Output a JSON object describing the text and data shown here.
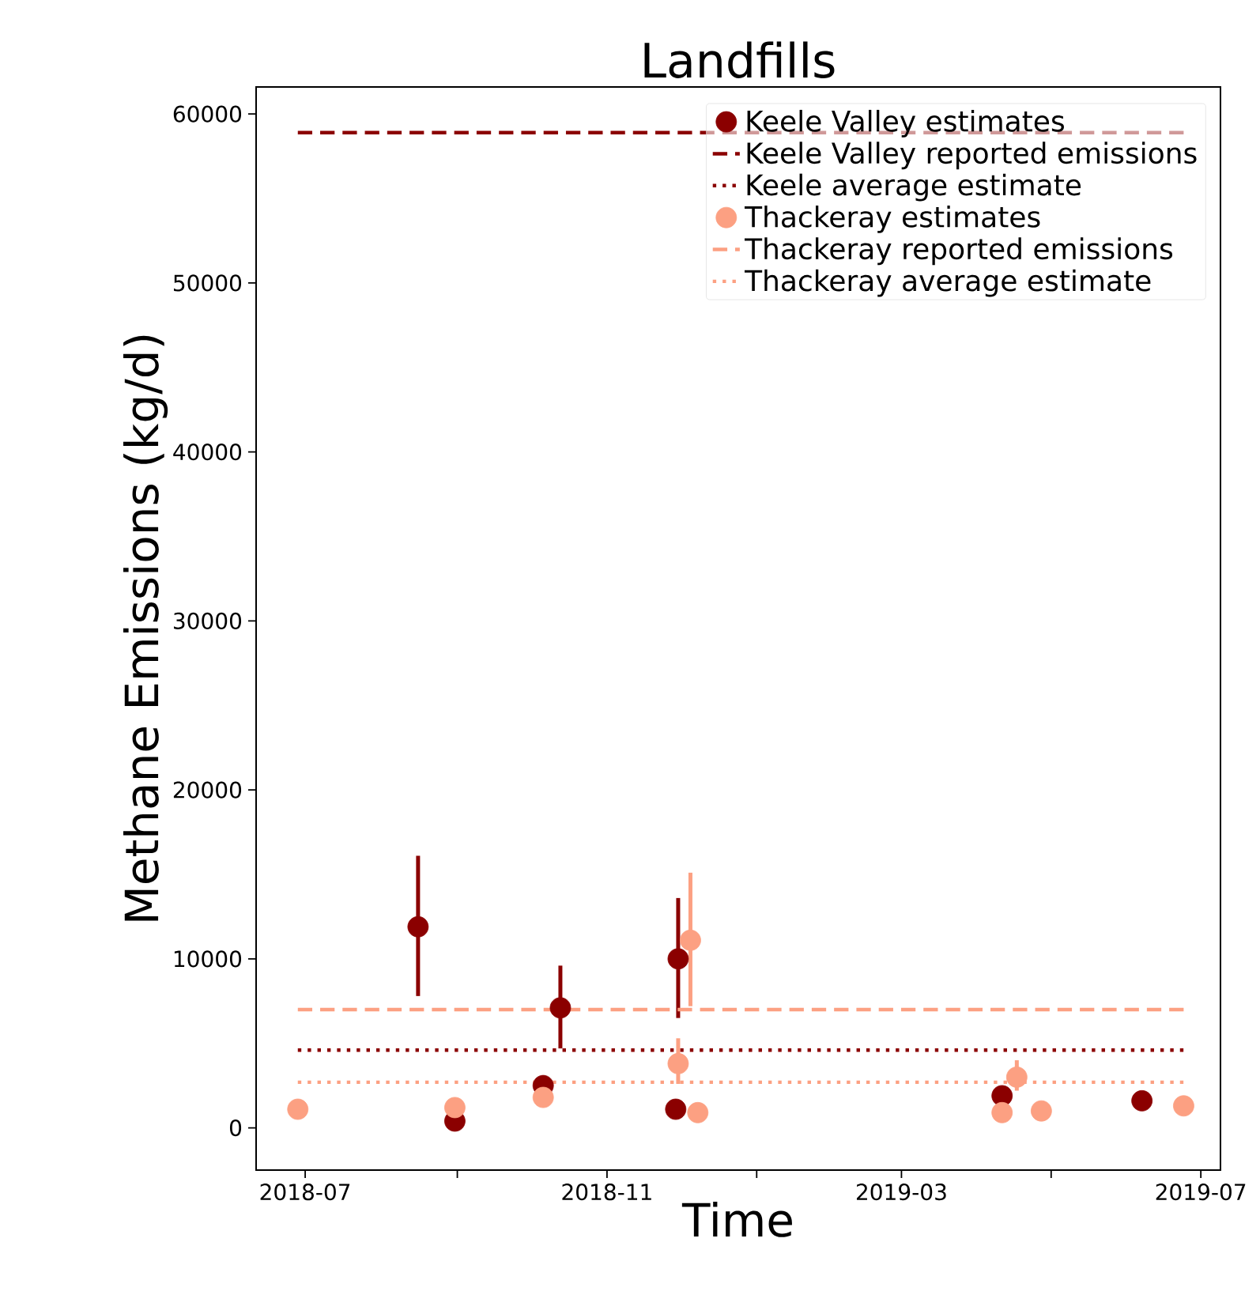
{
  "chart_data": {
    "type": "scatter",
    "title": "Landfills",
    "xlabel": "Time",
    "ylabel": "Methane Emissions (kg/d)",
    "xlim": [
      "2018-06-11",
      "2019-07-09"
    ],
    "ylim": [
      -2500,
      61600
    ],
    "xticks": [
      {
        "value": "2018-07",
        "label": "2018-07"
      },
      {
        "value": "2018-09",
        "label": null
      },
      {
        "value": "2018-11",
        "label": "2018-11"
      },
      {
        "value": "2019-01",
        "label": null
      },
      {
        "value": "2019-03",
        "label": "2019-03"
      },
      {
        "value": "2019-05",
        "label": null
      },
      {
        "value": "2019-07",
        "label": "2019-07"
      }
    ],
    "yticks": [
      0,
      10000,
      20000,
      30000,
      40000,
      50000,
      60000
    ],
    "legend": "top right",
    "series": [
      {
        "name": "Keele Valley estimates",
        "marker": "circle",
        "color": "#8b0000",
        "x": [
          "2018-08-16",
          "2018-08-31",
          "2018-10-06",
          "2018-10-13",
          "2018-11-30",
          "2018-11-29",
          "2019-04-11",
          "2019-06-07"
        ],
        "values": [
          11900,
          400,
          2500,
          7100,
          10000,
          1100,
          1900,
          1600
        ],
        "errors": [
          [
            7800,
            16100
          ],
          null,
          [
            2300,
            3100
          ],
          [
            4700,
            9600
          ],
          [
            6500,
            13600
          ],
          null,
          null,
          null
        ]
      },
      {
        "name": "Keele Valley reported emissions",
        "type": "line",
        "line_style": "dashed",
        "color": "#8b0000",
        "x": [
          "2018-06-28",
          "2019-06-24"
        ],
        "values": [
          58900,
          58900
        ]
      },
      {
        "name": "Keele average estimate",
        "type": "line",
        "line_style": "dotted",
        "color": "#8b0000",
        "x": [
          "2018-06-28",
          "2019-06-24"
        ],
        "values": [
          4600,
          4600
        ]
      },
      {
        "name": "Thackeray estimates",
        "marker": "circle",
        "color": "#fca082",
        "x": [
          "2018-06-28",
          "2018-08-31",
          "2018-10-06",
          "2018-12-05",
          "2018-11-30",
          "2018-12-08",
          "2019-04-11",
          "2019-04-17",
          "2019-04-27",
          "2019-06-24"
        ],
        "values": [
          1100,
          1200,
          1800,
          11100,
          3800,
          900,
          900,
          3000,
          1000,
          1300
        ],
        "errors": [
          null,
          null,
          null,
          [
            7200,
            15100
          ],
          [
            2600,
            5300
          ],
          null,
          null,
          [
            2200,
            4000
          ],
          null,
          null
        ]
      },
      {
        "name": "Thackeray reported emissions",
        "type": "line",
        "line_style": "dashed",
        "color": "#fca082",
        "x": [
          "2018-06-28",
          "2019-06-24"
        ],
        "values": [
          7000,
          7000
        ]
      },
      {
        "name": "Thackeray average estimate",
        "type": "line",
        "line_style": "dotted",
        "color": "#fca082",
        "x": [
          "2018-06-28",
          "2019-06-24"
        ],
        "values": [
          2700,
          2700
        ]
      }
    ]
  }
}
